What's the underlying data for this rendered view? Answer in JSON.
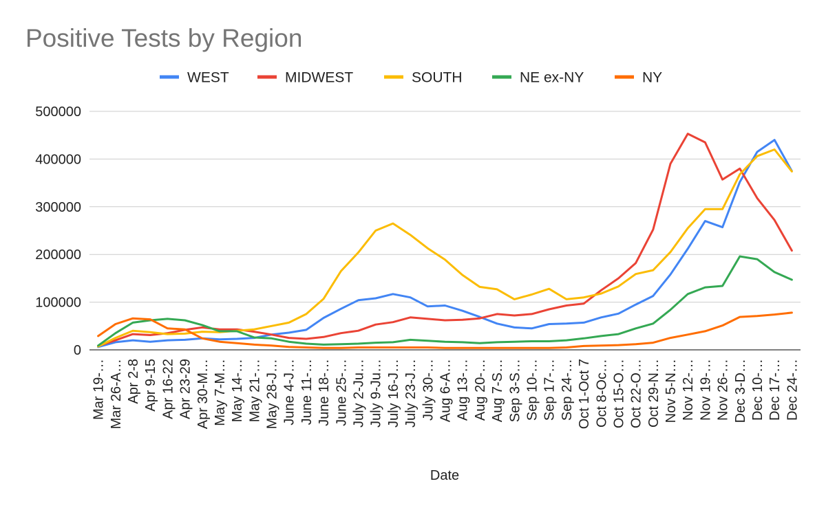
{
  "chart_data": {
    "type": "line",
    "title": "Positive Tests by Region",
    "xlabel": "Date",
    "ylabel": "",
    "ylim": [
      0,
      500000
    ],
    "yticks": [
      "0",
      "100000",
      "200000",
      "300000",
      "400000",
      "500000"
    ],
    "grid": true,
    "legend_position": "top",
    "categories": [
      "Mar 19-…",
      "Mar 26-A…",
      "Apr 2-8",
      "Apr 9-15",
      "Apr 16-22",
      "Apr 23-29",
      "Apr 30-M…",
      "May 7-M…",
      "May 14-…",
      "May 21-…",
      "May 28-J…",
      "June 4-J…",
      "June 11-…",
      "June 18-…",
      "June 25-…",
      "July 2-Ju…",
      "July 9-Ju…",
      "July 16-J…",
      "July 23-J…",
      "July 30-…",
      "Aug 6-A…",
      "Aug 13-…",
      "Aug 20-…",
      "Aug 7-S…",
      "Sep 3-S…",
      "Sep 10-…",
      "Sep 17-…",
      "Sep 24-…",
      "Oct 1-Oct 7",
      "Oct 8-Oc…",
      "Oct 15-O…",
      "Oct 22-O…",
      "Oct 29-N…",
      "Nov 5-N…",
      "Nov 12-…",
      "Nov 19-…",
      "Nov 26-…",
      "Dec 3-D…",
      "Dec 10-…",
      "Dec 17-…",
      "Dec 24-…"
    ],
    "series": [
      {
        "name": "WEST",
        "color": "#4285f4",
        "values": [
          6000,
          16000,
          20000,
          17000,
          20000,
          21000,
          24000,
          22000,
          23000,
          25000,
          32000,
          36000,
          42000,
          67000,
          86000,
          104000,
          108000,
          117000,
          110000,
          91000,
          93000,
          82000,
          69000,
          55000,
          47000,
          45000,
          54000,
          55000,
          57000,
          68000,
          76000,
          95000,
          113000,
          158000,
          212000,
          270000,
          257000,
          352000,
          415000,
          440000,
          375000
        ]
      },
      {
        "name": "MIDWEST",
        "color": "#ea4335",
        "values": [
          8000,
          20000,
          33000,
          31000,
          35000,
          42000,
          47000,
          43000,
          43000,
          38000,
          32000,
          25000,
          23000,
          27000,
          35000,
          40000,
          53000,
          58000,
          68000,
          65000,
          62000,
          63000,
          66000,
          75000,
          72000,
          75000,
          85000,
          93000,
          97000,
          125000,
          150000,
          182000,
          252000,
          390000,
          453000,
          435000,
          357000,
          380000,
          318000,
          272000,
          208000
        ]
      },
      {
        "name": "SOUTH",
        "color": "#fbbc04",
        "values": [
          7000,
          25000,
          40000,
          37000,
          33000,
          34000,
          38000,
          37000,
          40000,
          43000,
          50000,
          57000,
          75000,
          107000,
          165000,
          204000,
          250000,
          265000,
          241000,
          213000,
          189000,
          157000,
          132000,
          127000,
          106000,
          116000,
          128000,
          106000,
          110000,
          118000,
          133000,
          159000,
          167000,
          205000,
          255000,
          295000,
          295000,
          368000,
          406000,
          420000,
          374000
        ]
      },
      {
        "name": "NE ex-NY",
        "color": "#34a853",
        "values": [
          9000,
          35000,
          57000,
          62000,
          65000,
          62000,
          52000,
          39000,
          39000,
          26000,
          24000,
          17000,
          13000,
          11000,
          12000,
          13000,
          15000,
          16000,
          21000,
          19000,
          17000,
          16000,
          14000,
          16000,
          17000,
          18000,
          18000,
          20000,
          24000,
          29000,
          33000,
          45000,
          55000,
          84000,
          117000,
          131000,
          134000,
          196000,
          190000,
          163000,
          147000
        ]
      },
      {
        "name": "NY",
        "color": "#ff6d01",
        "values": [
          29000,
          54000,
          66000,
          64000,
          45000,
          43000,
          24000,
          17000,
          14000,
          11000,
          9000,
          6000,
          5000,
          4000,
          4000,
          5000,
          5000,
          5000,
          5000,
          5000,
          4000,
          4000,
          4000,
          4000,
          4000,
          4000,
          4000,
          5000,
          8000,
          9000,
          10000,
          12000,
          15000,
          25000,
          32000,
          39000,
          51000,
          69000,
          71000,
          74000,
          78000
        ]
      }
    ]
  }
}
